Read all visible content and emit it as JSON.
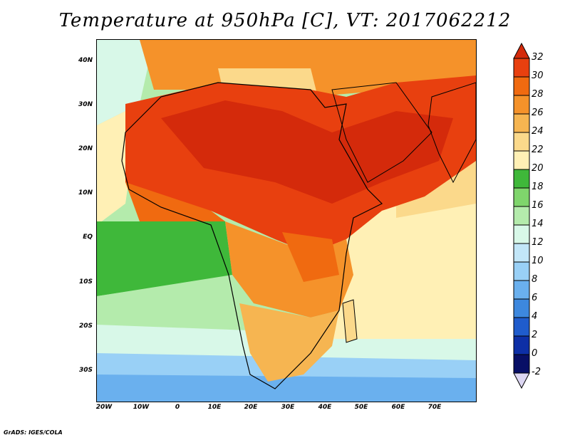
{
  "title": "Temperature at 950hPa [C], VT: 2017062212",
  "credit": "GrADS: IGES/COLA",
  "map": {
    "lon_ticks": [
      "20W",
      "10W",
      "0",
      "10E",
      "20E",
      "30E",
      "40E",
      "50E",
      "60E",
      "70E"
    ],
    "lat_ticks": [
      "40N",
      "30N",
      "20N",
      "10N",
      "EQ",
      "10S",
      "20S",
      "30S"
    ]
  },
  "colorbar": {
    "labels": [
      "32",
      "30",
      "28",
      "26",
      "24",
      "22",
      "20",
      "18",
      "16",
      "14",
      "12",
      "10",
      "8",
      "6",
      "4",
      "2",
      "0",
      "-2"
    ],
    "colors": [
      "#d42a0b",
      "#e8400f",
      "#f06a10",
      "#f5922a",
      "#f6b551",
      "#fbd98b",
      "#fff0b5",
      "#3fb83a",
      "#7fd56c",
      "#b4ebac",
      "#d8f8e8",
      "#c2e6f8",
      "#99d0f6",
      "#6ab0ee",
      "#3d88de",
      "#1f5ccc",
      "#0d2fa6",
      "#080f66",
      "#dcd6f2"
    ]
  }
}
